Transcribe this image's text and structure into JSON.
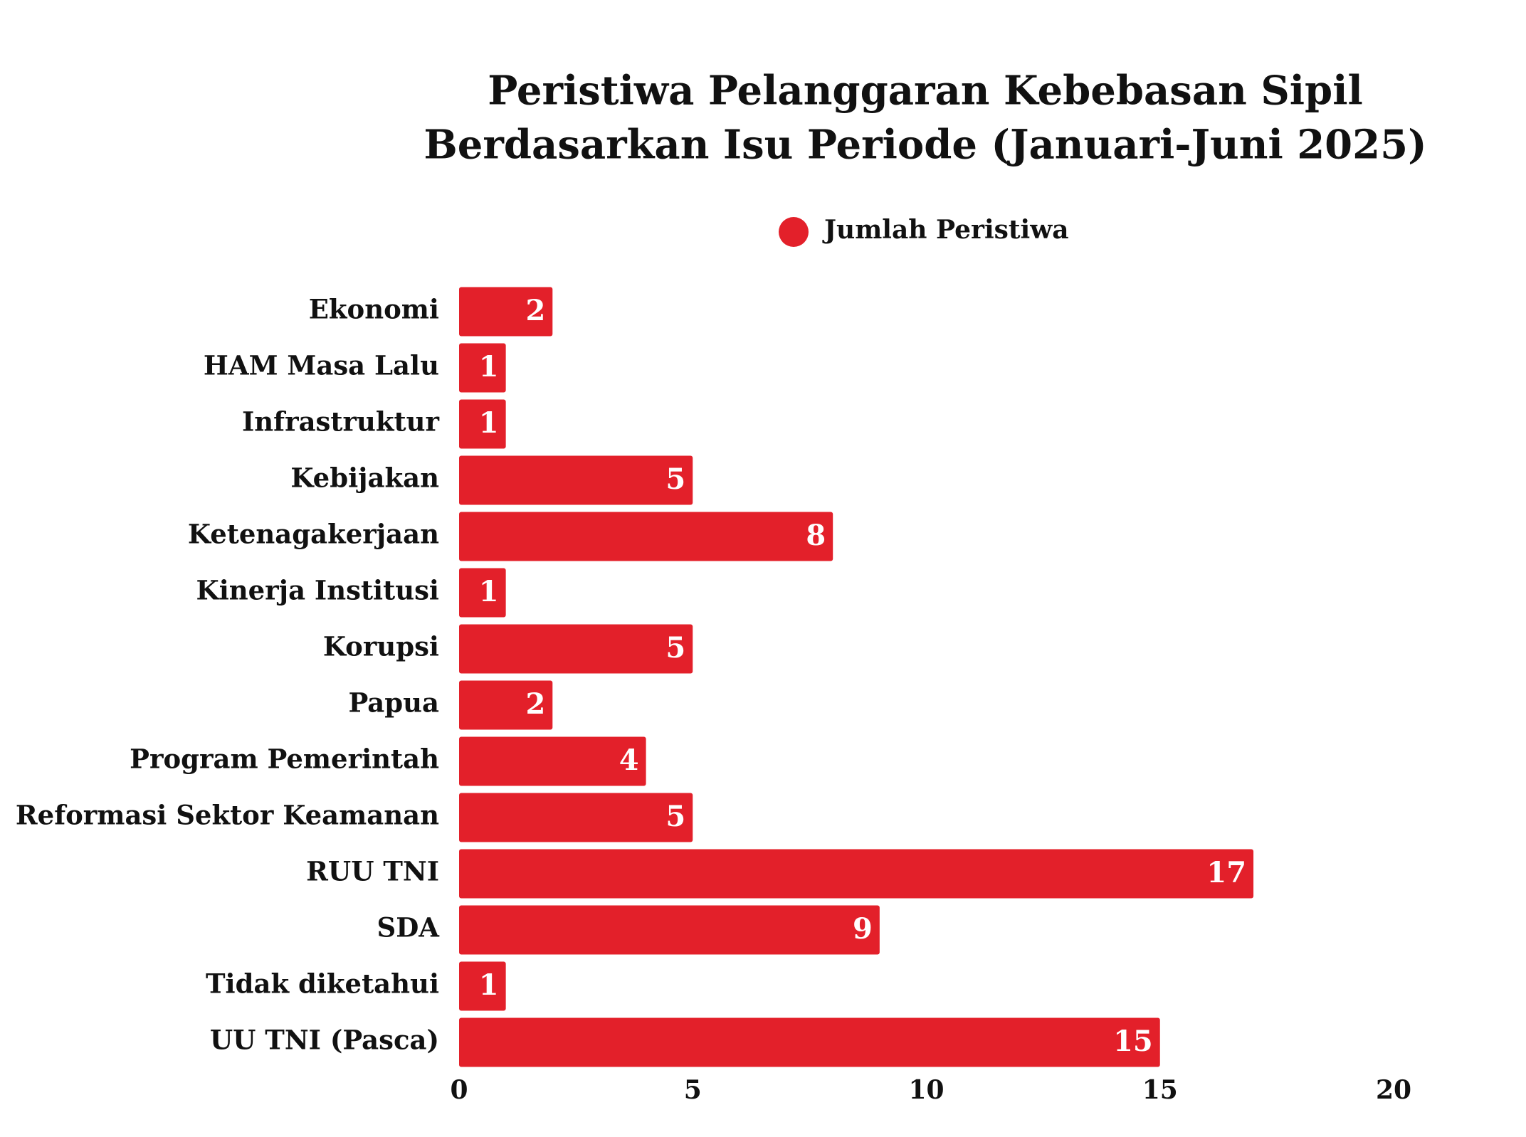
{
  "chart_data": {
    "type": "bar",
    "orientation": "horizontal",
    "title": [
      "Peristiwa Pelanggaran Kebebasan Sipil",
      "Berdasarkan Isu Periode (Januari-Juni 2025)"
    ],
    "categories": [
      "Ekonomi",
      "HAM Masa Lalu",
      "Infrastruktur",
      "Kebijakan",
      "Ketenagakerjaan",
      "Kinerja Institusi",
      "Korupsi",
      "Papua",
      "Program Pemerintah",
      "Reformasi Sektor Keamanan",
      "RUU TNI",
      "SDA",
      "Tidak diketahui",
      "UU TNI (Pasca)"
    ],
    "series": [
      {
        "name": "Jumlah Peristiwa",
        "color": "#e3202a",
        "values": [
          2,
          1,
          1,
          5,
          8,
          1,
          5,
          2,
          4,
          5,
          17,
          9,
          1,
          15
        ]
      }
    ],
    "xlim": [
      0,
      20
    ],
    "xticks": [
      0,
      5,
      10,
      15,
      20
    ],
    "grid": false,
    "legend": "top"
  }
}
